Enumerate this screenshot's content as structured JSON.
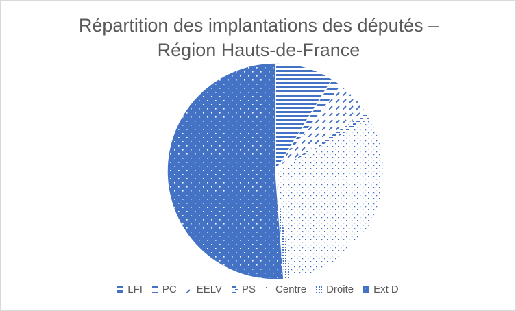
{
  "chart_data": {
    "type": "pie",
    "title": "Répartition des implantations des députés –",
    "subtitle": "Région Hauts-de-France",
    "categories": [
      "LFI",
      "PC",
      "EELV",
      "PS",
      "Centre",
      "Droite",
      "Ext D"
    ],
    "values": [
      8.8,
      1.6,
      5.4,
      1.2,
      30.6,
      1.2,
      51.2
    ],
    "unit": "%",
    "legend_position": "bottom",
    "colors": {
      "series": "#4472c4",
      "text": "#595959",
      "border": "#d9d9d9"
    },
    "patterns": [
      "horizontal-lines",
      "horizontal-lines-wide",
      "diagonal-dashes",
      "horizontal-dashes",
      "sparse-dots",
      "dense-dots",
      "solid-dotted"
    ]
  }
}
